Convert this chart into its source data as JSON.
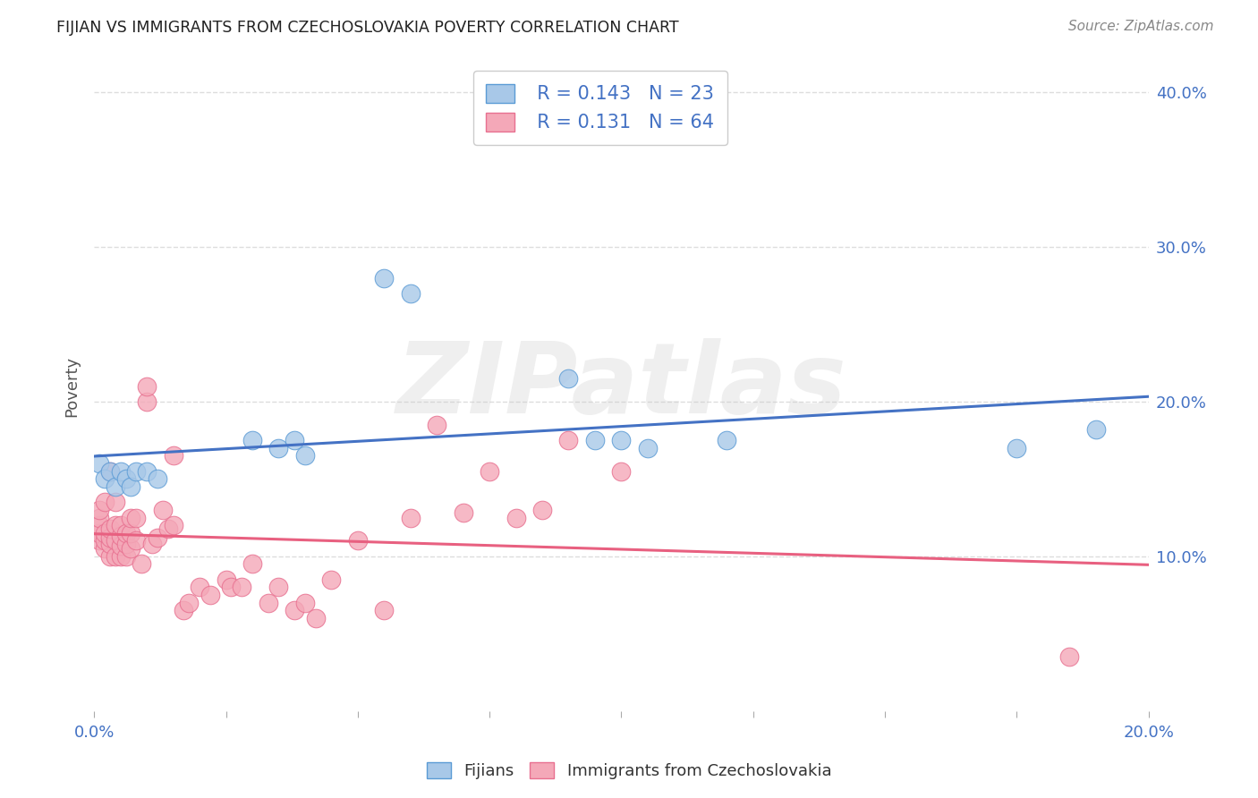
{
  "title": "FIJIAN VS IMMIGRANTS FROM CZECHOSLOVAKIA POVERTY CORRELATION CHART",
  "source": "Source: ZipAtlas.com",
  "ylabel": "Poverty",
  "watermark": "ZIPatlas",
  "xlim": [
    0.0,
    0.2
  ],
  "ylim": [
    0.0,
    0.42
  ],
  "xticks": [
    0.0,
    0.025,
    0.05,
    0.075,
    0.1,
    0.125,
    0.15,
    0.175,
    0.2
  ],
  "xtick_labels_show": [
    0.0,
    0.2
  ],
  "yticks": [
    0.1,
    0.2,
    0.3,
    0.4
  ],
  "fijian_color": "#A8C8E8",
  "czech_color": "#F4A8B8",
  "fijian_edge_color": "#5B9BD5",
  "czech_edge_color": "#E87090",
  "fijian_line_color": "#4472C4",
  "czech_line_color": "#E86080",
  "fijian_R": 0.143,
  "fijian_N": 23,
  "czech_R": 0.131,
  "czech_N": 64,
  "fijian_x": [
    0.001,
    0.002,
    0.003,
    0.004,
    0.005,
    0.006,
    0.007,
    0.008,
    0.01,
    0.012,
    0.03,
    0.035,
    0.038,
    0.04,
    0.055,
    0.06,
    0.09,
    0.095,
    0.1,
    0.105,
    0.12,
    0.175,
    0.19
  ],
  "fijian_y": [
    0.16,
    0.15,
    0.155,
    0.145,
    0.155,
    0.15,
    0.145,
    0.155,
    0.155,
    0.15,
    0.175,
    0.17,
    0.175,
    0.165,
    0.28,
    0.27,
    0.215,
    0.175,
    0.175,
    0.17,
    0.175,
    0.17,
    0.182
  ],
  "czech_x": [
    0.001,
    0.001,
    0.001,
    0.001,
    0.001,
    0.002,
    0.002,
    0.002,
    0.002,
    0.003,
    0.003,
    0.003,
    0.003,
    0.003,
    0.004,
    0.004,
    0.004,
    0.004,
    0.005,
    0.005,
    0.005,
    0.005,
    0.006,
    0.006,
    0.006,
    0.007,
    0.007,
    0.007,
    0.008,
    0.008,
    0.009,
    0.01,
    0.01,
    0.011,
    0.012,
    0.013,
    0.014,
    0.015,
    0.015,
    0.017,
    0.018,
    0.02,
    0.022,
    0.025,
    0.026,
    0.028,
    0.03,
    0.033,
    0.035,
    0.038,
    0.04,
    0.042,
    0.045,
    0.05,
    0.055,
    0.06,
    0.065,
    0.07,
    0.075,
    0.08,
    0.085,
    0.09,
    0.1,
    0.185
  ],
  "czech_y": [
    0.11,
    0.115,
    0.12,
    0.125,
    0.13,
    0.105,
    0.11,
    0.115,
    0.135,
    0.1,
    0.108,
    0.112,
    0.118,
    0.155,
    0.1,
    0.11,
    0.12,
    0.135,
    0.1,
    0.107,
    0.113,
    0.12,
    0.1,
    0.108,
    0.115,
    0.105,
    0.115,
    0.125,
    0.11,
    0.125,
    0.095,
    0.2,
    0.21,
    0.108,
    0.112,
    0.13,
    0.118,
    0.12,
    0.165,
    0.065,
    0.07,
    0.08,
    0.075,
    0.085,
    0.08,
    0.08,
    0.095,
    0.07,
    0.08,
    0.065,
    0.07,
    0.06,
    0.085,
    0.11,
    0.065,
    0.125,
    0.185,
    0.128,
    0.155,
    0.125,
    0.13,
    0.175,
    0.155,
    0.035
  ],
  "legend_fijian_label": "Fijians",
  "legend_czech_label": "Immigrants from Czechoslovakia",
  "background_color": "#FFFFFF",
  "grid_color": "#DDDDDD",
  "title_color": "#222222",
  "axis_label_color": "#555555",
  "tick_label_color": "#4472C4",
  "source_color": "#888888"
}
